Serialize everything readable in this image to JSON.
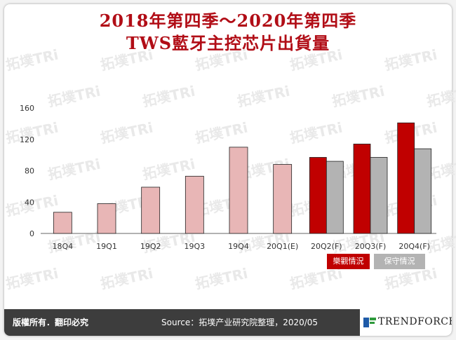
{
  "title_line1": "2018年第四季～2020年第四季",
  "title_line2": "TWS藍牙主控芯片出貨量",
  "watermark": "拓墣TRi TOPOLOGY RESEARCH INSTITUTE",
  "legend": {
    "optimistic": "樂觀情況",
    "conservative": "保守情況"
  },
  "footer": {
    "rights": "版權所有．翻印必究",
    "source": "Source：拓墣产业研究院整理，2020/05",
    "brand": "TRENDFORCE"
  },
  "colors": {
    "historical": "#e8b6b6",
    "optimistic": "#c00000",
    "conservative": "#b3b3b3",
    "title": "#b10d16"
  },
  "chart_data": {
    "type": "bar",
    "categories": [
      "18Q4",
      "19Q1",
      "19Q2",
      "19Q3",
      "19Q4",
      "20Q1(E)",
      "20Q2(F)",
      "20Q3(F)",
      "20Q4(F)"
    ],
    "series": [
      {
        "name": "",
        "values": [
          27,
          38,
          59,
          73,
          110,
          88,
          null,
          null,
          null
        ],
        "color": "#e8b6b6"
      },
      {
        "name": "樂觀情況",
        "values": [
          null,
          null,
          null,
          null,
          null,
          null,
          97,
          114,
          141
        ],
        "color": "#c00000"
      },
      {
        "name": "保守情況",
        "values": [
          null,
          null,
          null,
          null,
          null,
          null,
          92,
          97,
          108
        ],
        "color": "#b3b3b3"
      }
    ],
    "yticks": [
      0,
      40,
      80,
      120,
      160
    ],
    "ylim": [
      0,
      160
    ],
    "grid": false,
    "legend_position": "bottom-right"
  }
}
